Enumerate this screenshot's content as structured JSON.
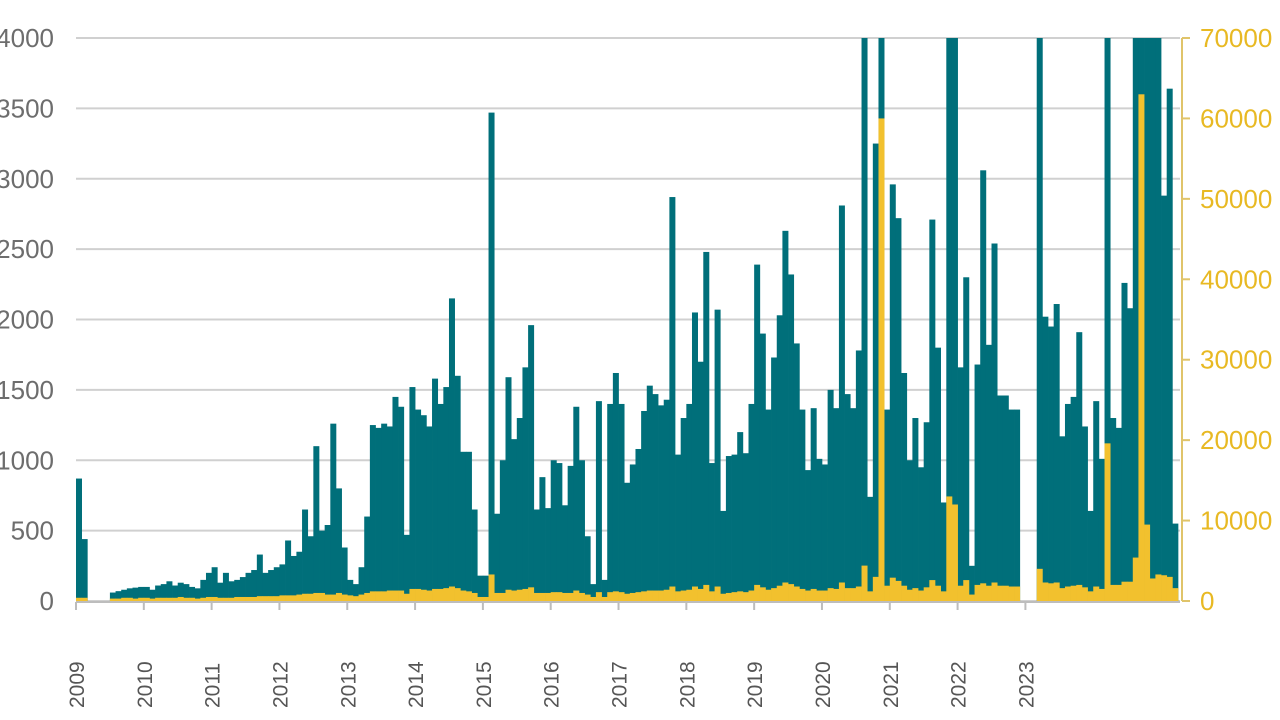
{
  "chart_data": {
    "type": "bar",
    "title": "",
    "xlabel": "",
    "ylabel": "",
    "grid": true,
    "x_start": "2009-01",
    "x_ticks": [
      "2009",
      "2010",
      "2011",
      "2012",
      "2013",
      "2014",
      "2015",
      "2016",
      "2017",
      "2018",
      "2019",
      "2020",
      "2021",
      "2022",
      "2023"
    ],
    "y_left": {
      "ticks": [
        "0",
        "500",
        "1000",
        "1500",
        "2000",
        "2500",
        "3000",
        "3500",
        "4000"
      ],
      "ylim": [
        0,
        4000
      ]
    },
    "y_right": {
      "ticks": [
        "0",
        "10000",
        "20000",
        "30000",
        "40000",
        "50000",
        "60000",
        "70000"
      ],
      "ylim": [
        0,
        70000
      ]
    },
    "colors": {
      "teal": "#006f7a",
      "gold": "#f2c12e",
      "grid": "#d0d0d0",
      "left_axis_text": "#6d6d6d",
      "right_axis_text": "#e8b923"
    },
    "series": [
      {
        "axis": "left",
        "color": "#006f7a",
        "values": [
          870,
          440,
          0,
          0,
          0,
          0,
          60,
          70,
          80,
          90,
          95,
          100,
          100,
          80,
          110,
          120,
          140,
          110,
          130,
          120,
          100,
          90,
          150,
          200,
          240,
          130,
          200,
          140,
          150,
          170,
          200,
          220,
          330,
          200,
          220,
          240,
          260,
          430,
          320,
          350,
          650,
          460,
          1100,
          500,
          540,
          1260,
          800,
          380,
          150,
          120,
          240,
          600,
          1250,
          1230,
          1260,
          1240,
          1450,
          1380,
          470,
          1520,
          1360,
          1320,
          1240,
          1580,
          1400,
          1520,
          2150,
          1600,
          1060,
          1060,
          650,
          180,
          180,
          3470,
          620,
          1000,
          1590,
          1150,
          1300,
          1660,
          1960,
          650,
          880,
          660,
          1000,
          980,
          680,
          960,
          1380,
          1000,
          460,
          120,
          1420,
          150,
          1400,
          1620,
          1400,
          840,
          970,
          1080,
          1350,
          1530,
          1470,
          1390,
          1430,
          2870,
          1040,
          1300,
          1400,
          2050,
          1700,
          2480,
          980,
          2070,
          640,
          1030,
          1040,
          1200,
          1050,
          1400,
          2390,
          1900,
          1360,
          1730,
          2030,
          2630,
          2320,
          1830,
          1360,
          930,
          1370,
          1010,
          970,
          1500,
          1370,
          2810,
          1470,
          1370,
          1780,
          4000,
          740,
          3250,
          4000,
          1360,
          2960,
          2720,
          1620,
          1000,
          1300,
          950,
          1270,
          2710,
          1800,
          700,
          4000,
          4000,
          1660,
          2300,
          250,
          1680,
          3060,
          1820,
          2540,
          1460,
          1460,
          1360,
          1360,
          0,
          0,
          0,
          4000,
          2020,
          1950,
          2110,
          1170,
          1400,
          1450,
          1910,
          1240,
          640,
          1420,
          1010,
          4000,
          1300,
          1230,
          2260,
          2080,
          4000,
          4000,
          4000,
          4000,
          4000,
          2880,
          3640,
          550
        ]
      },
      {
        "axis": "right",
        "color": "#f2c12e",
        "values": [
          400,
          400,
          0,
          0,
          0,
          0,
          300,
          300,
          400,
          400,
          300,
          400,
          400,
          300,
          400,
          400,
          400,
          400,
          500,
          400,
          400,
          300,
          400,
          500,
          500,
          400,
          400,
          400,
          500,
          500,
          500,
          500,
          600,
          600,
          600,
          600,
          700,
          700,
          700,
          800,
          900,
          900,
          1000,
          1000,
          800,
          800,
          1000,
          800,
          700,
          600,
          800,
          1000,
          1200,
          1200,
          1200,
          1300,
          1300,
          1300,
          900,
          1500,
          1500,
          1400,
          1300,
          1500,
          1500,
          1600,
          1800,
          1600,
          1300,
          1200,
          1000,
          500,
          500,
          3300,
          1000,
          1000,
          1400,
          1300,
          1400,
          1500,
          1700,
          1000,
          1000,
          1000,
          1100,
          1100,
          1000,
          1000,
          1300,
          1000,
          800,
          500,
          1100,
          500,
          1100,
          1200,
          1100,
          900,
          1000,
          1100,
          1200,
          1300,
          1300,
          1300,
          1400,
          1800,
          1200,
          1300,
          1400,
          1800,
          1500,
          2000,
          1200,
          1800,
          900,
          1000,
          1100,
          1200,
          1100,
          1300,
          2000,
          1700,
          1400,
          1600,
          1900,
          2300,
          2100,
          1800,
          1500,
          1300,
          1500,
          1300,
          1300,
          1600,
          1500,
          2300,
          1600,
          1600,
          1800,
          4400,
          1200,
          3000,
          60000,
          1900,
          2900,
          2500,
          1900,
          1400,
          1600,
          1300,
          1700,
          2600,
          1900,
          1200,
          13000,
          12000,
          1900,
          2600,
          800,
          2000,
          2200,
          1900,
          2300,
          1900,
          1900,
          1800,
          1800,
          0,
          0,
          0,
          4000,
          2300,
          2200,
          2300,
          1600,
          1800,
          1900,
          2000,
          1700,
          1200,
          1800,
          1500,
          19600,
          2000,
          2000,
          2400,
          2400,
          5400,
          63000,
          9500,
          2800,
          3300,
          3200,
          3000,
          1600
        ]
      }
    ]
  }
}
